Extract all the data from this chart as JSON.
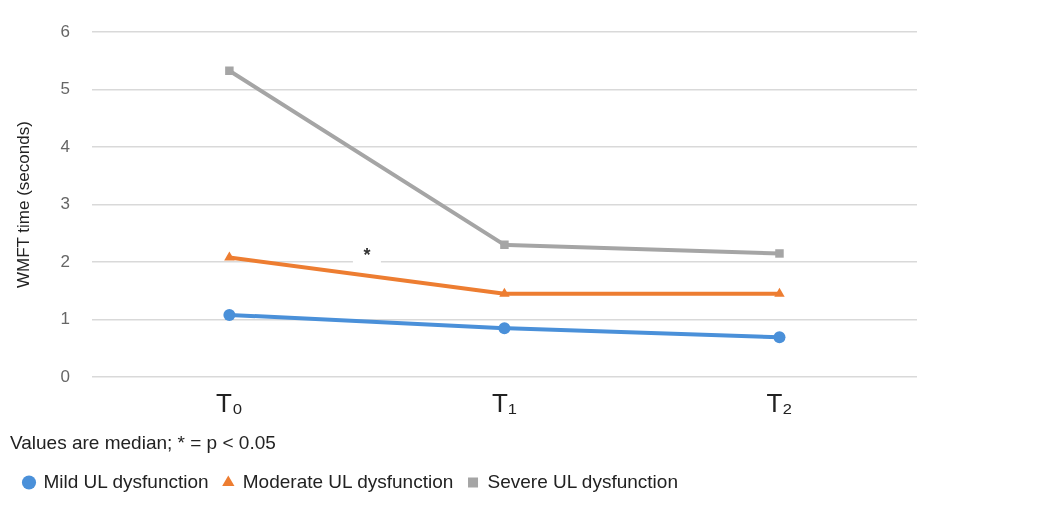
{
  "chart_data": {
    "type": "line",
    "ylabel": "WMFT time (seconds)",
    "categories": [
      "T₀",
      "T₁",
      "T₂"
    ],
    "series": [
      {
        "name": "Mild UL dysfunction",
        "color": "#4a90d9",
        "marker": "circle",
        "values": [
          1.08,
          0.85,
          0.69
        ]
      },
      {
        "name": "Moderate UL dysfunction",
        "color": "#ed7d31",
        "marker": "triangle",
        "values": [
          2.08,
          1.45,
          1.45
        ]
      },
      {
        "name": "Severe UL dysfunction",
        "color": "#a5a5a5",
        "marker": "square",
        "values": [
          5.33,
          2.3,
          2.15
        ]
      }
    ],
    "ylim": [
      0,
      6
    ],
    "yticks": [
      0,
      1,
      2,
      3,
      4,
      5,
      6
    ],
    "grid": "y",
    "legend": "bottom",
    "annotations": [
      {
        "text": "*",
        "y": 2.1
      },
      "Values are median; * = p < 0.05"
    ]
  }
}
